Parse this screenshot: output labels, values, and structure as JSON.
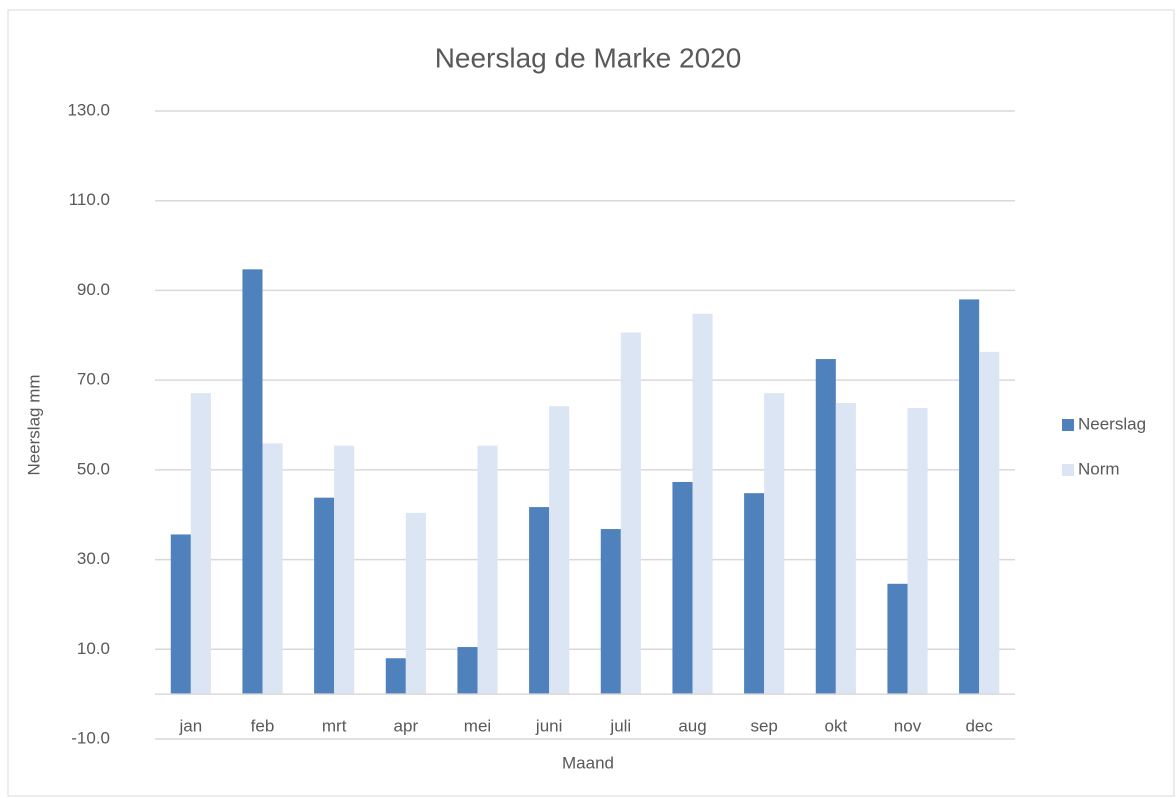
{
  "chart_data": {
    "type": "bar",
    "title": "Neerslag de Marke 2020",
    "x_label": "Maand",
    "y_label": "Neerslag mm",
    "categories": [
      "jan",
      "feb",
      "mrt",
      "apr",
      "mei",
      "juni",
      "juli",
      "aug",
      "sep",
      "okt",
      "nov",
      "dec"
    ],
    "series": [
      {
        "name": "Neerslag",
        "color": "#4f81bd",
        "values": [
          35.6,
          94.7,
          43.8,
          8.0,
          10.5,
          41.7,
          36.8,
          47.3,
          44.8,
          74.7,
          24.6,
          88.0
        ]
      },
      {
        "name": "Norm",
        "color": "#dbe5f4",
        "values": [
          67.1,
          55.9,
          55.4,
          40.4,
          55.4,
          64.2,
          80.6,
          84.8,
          67.1,
          64.9,
          63.8,
          76.3
        ]
      }
    ],
    "ylim": [
      -10,
      130
    ],
    "yticks": [
      {
        "value": -10,
        "label": "-10.0"
      },
      {
        "value": 10,
        "label": "10.0"
      },
      {
        "value": 30,
        "label": "30.0"
      },
      {
        "value": 50,
        "label": "50.0"
      },
      {
        "value": 70,
        "label": "70.0"
      },
      {
        "value": 90,
        "label": "90.0"
      },
      {
        "value": 110,
        "label": "110.0"
      },
      {
        "value": 130,
        "label": "130.0"
      }
    ],
    "grid": true,
    "legend": "right"
  }
}
